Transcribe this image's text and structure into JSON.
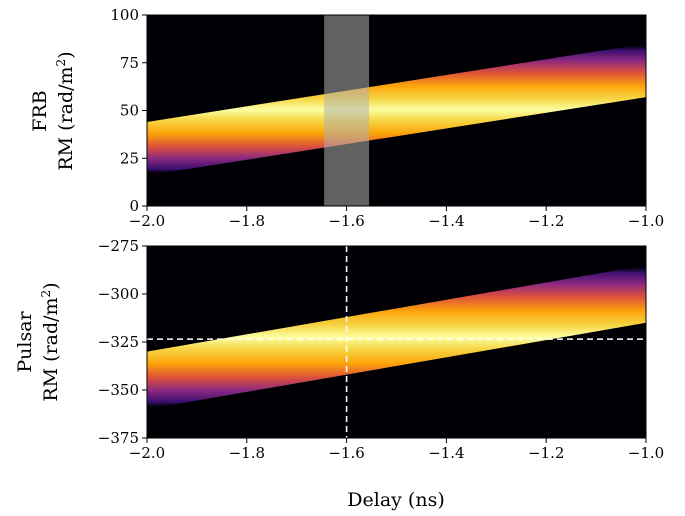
{
  "chart_data": [
    {
      "type": "heatmap",
      "colormap": "inferno",
      "xlim": [
        -2.0,
        -1.0
      ],
      "ylim": [
        0,
        100
      ],
      "ylabel_line1": "FRB",
      "ylabel_line2_main": "RM (rad/m",
      "ylabel_line2_sup": "2",
      "ylabel_line2_end": ")",
      "xticks": [
        -2.0,
        -1.8,
        -1.6,
        -1.4,
        -1.2,
        -1.0
      ],
      "xtick_labels": [
        "−2.0",
        "−1.8",
        "−1.6",
        "−1.4",
        "−1.2",
        "−1.0"
      ],
      "yticks": [
        0,
        25,
        50,
        75,
        100
      ],
      "ytick_labels": [
        "0",
        "25",
        "50",
        "75",
        "100"
      ],
      "ridge": {
        "x": [
          -2.0,
          -1.0
        ],
        "y": [
          30,
          71
        ]
      },
      "ridge_half_width": 14,
      "highlight_band": {
        "x_range": [
          -1.645,
          -1.555
        ],
        "color": "#b0b0b0",
        "opacity": 0.55
      }
    },
    {
      "type": "heatmap",
      "colormap": "inferno",
      "xlim": [
        -2.0,
        -1.0
      ],
      "ylim": [
        -375,
        -275
      ],
      "xlabel": "Delay (ns)",
      "ylabel_line1": "Pulsar",
      "ylabel_line2_main": "RM (rad/m",
      "ylabel_line2_sup": "2",
      "ylabel_line2_end": ")",
      "xticks": [
        -2.0,
        -1.8,
        -1.6,
        -1.4,
        -1.2,
        -1.0
      ],
      "xtick_labels": [
        "−2.0",
        "−1.8",
        "−1.6",
        "−1.4",
        "−1.2",
        "−1.0"
      ],
      "yticks": [
        -375,
        -350,
        -325,
        -300,
        -275
      ],
      "ytick_labels": [
        "−375",
        "−350",
        "−325",
        "−300",
        "−275"
      ],
      "ridge": {
        "x": [
          -2.0,
          -1.0
        ],
        "y": [
          -345,
          -300
        ]
      },
      "ridge_half_width": 15,
      "crosshair": {
        "x": -1.6,
        "y": -323.5,
        "color": "#ffffff",
        "style": "dashed"
      }
    }
  ]
}
